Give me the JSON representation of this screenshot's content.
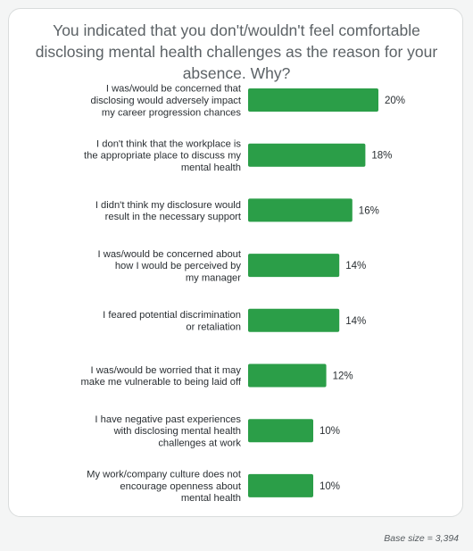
{
  "colors": {
    "bar": "#2b9e48",
    "background": "#f4f5f5",
    "card": "#ffffff"
  },
  "chart_data": {
    "type": "bar",
    "orientation": "horizontal",
    "title": "You indicated that you don't/wouldn't feel comfortable disclosing mental health challenges as the reason for your absence. Why?",
    "categories": [
      [
        "I was/would be concerned that",
        "disclosing would adversely impact",
        "my career progression chances"
      ],
      [
        "I don't think that the workplace is",
        "the appropriate place to discuss my",
        "mental health"
      ],
      [
        "I didn't think my disclosure would",
        "result in the necessary support"
      ],
      [
        "I was/would be concerned about",
        "how I would be perceived by",
        "my manager"
      ],
      [
        "I feared potential discrimination",
        "or retaliation"
      ],
      [
        "I was/would be worried that it may",
        "make me vulnerable to being laid off"
      ],
      [
        "I have negative past experiences",
        "with disclosing mental health",
        "challenges at work"
      ],
      [
        "My work/company culture does not",
        "encourage openness about",
        "mental health"
      ]
    ],
    "values": [
      20,
      18,
      16,
      14,
      14,
      12,
      10,
      10
    ],
    "value_labels": [
      "20%",
      "18%",
      "16%",
      "14%",
      "14%",
      "12%",
      "10%",
      "10%"
    ],
    "xlim": [
      0,
      20
    ],
    "grid": false
  },
  "footnote": "Base size = 3,394"
}
